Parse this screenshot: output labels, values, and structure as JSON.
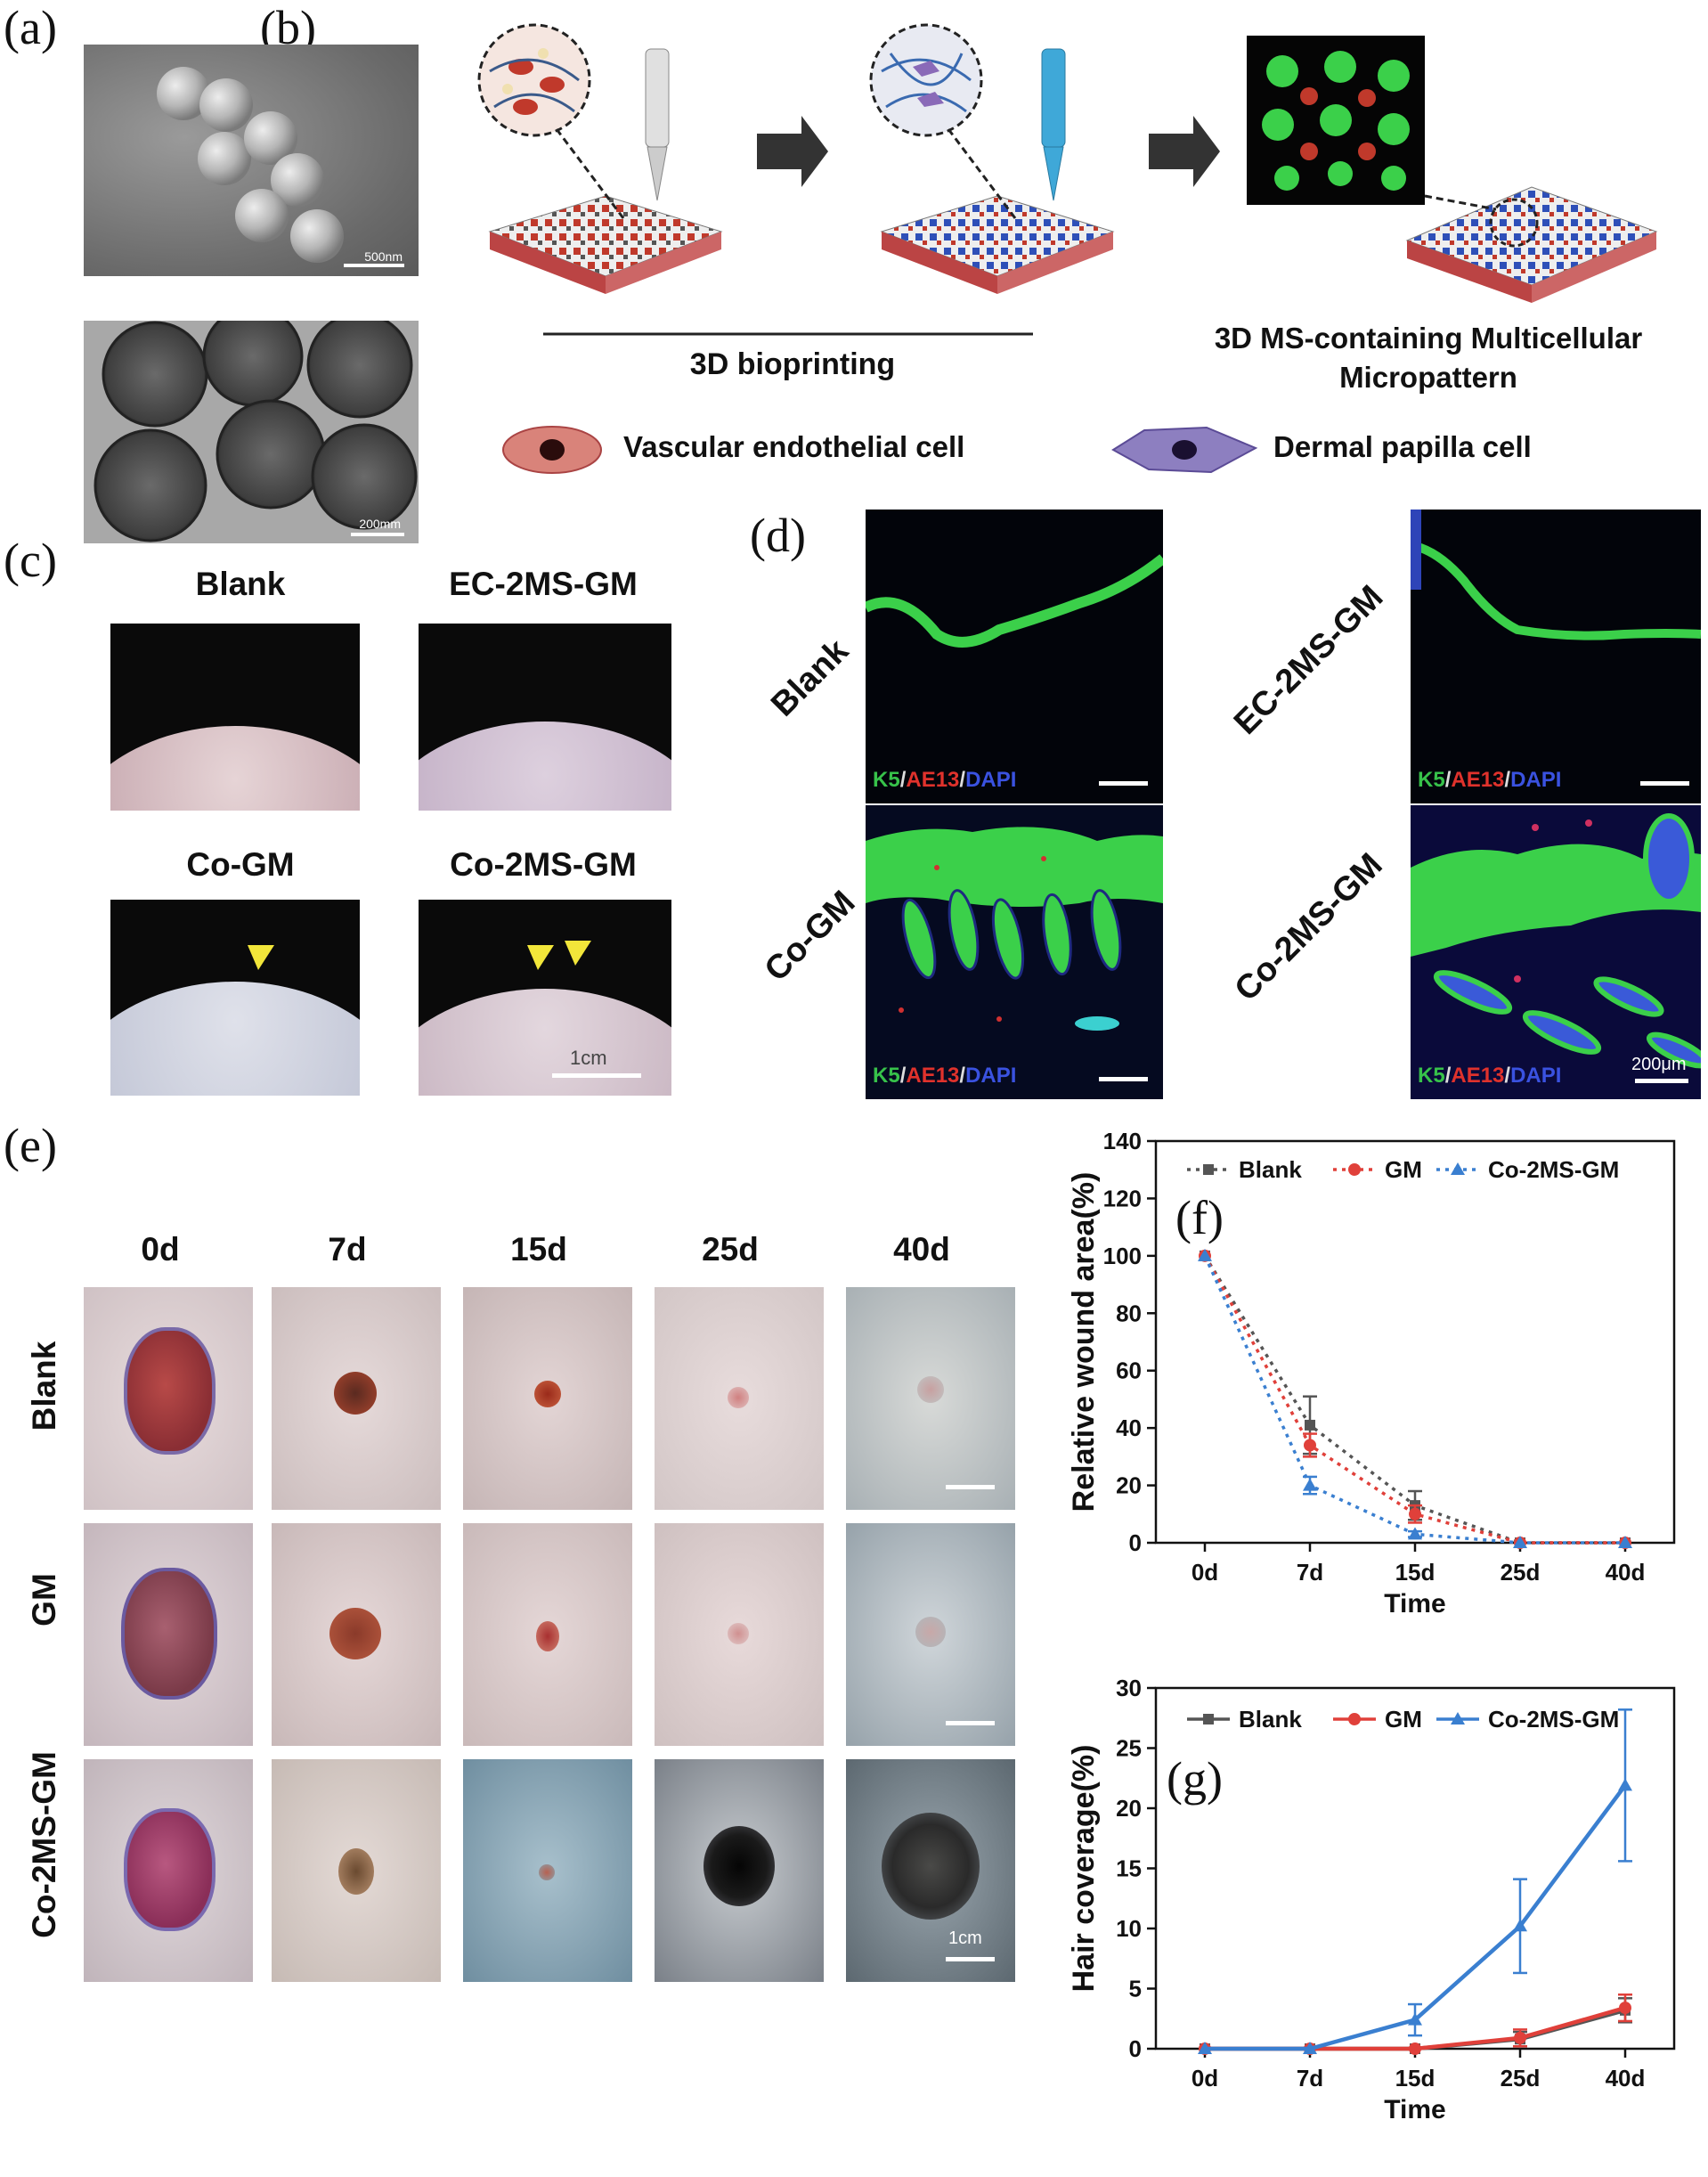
{
  "panel_labels": {
    "a": "(a)",
    "b": "(b)",
    "c": "(c)",
    "d": "(d)",
    "e": "(e)",
    "f": "(f)",
    "g": "(g)"
  },
  "panel_a": {
    "scale_top": "500nm",
    "scale_bottom": "200mm"
  },
  "panel_b": {
    "bioprinting_label": "3D bioprinting",
    "result_label_line1": "3D MS-containing Multicellular",
    "result_label_line2": "Micropattern",
    "legend": {
      "endothelial": "Vascular endothelial cell",
      "papilla": "Dermal papilla cell"
    }
  },
  "panel_c": {
    "groups": [
      "Blank",
      "EC-2MS-GM",
      "Co-GM",
      "Co-2MS-GM"
    ],
    "scale": "1cm"
  },
  "panel_d": {
    "groups": [
      "Blank",
      "EC-2MS-GM",
      "Co-GM",
      "Co-2MS-GM"
    ],
    "stain": {
      "k5": "K5",
      "ae13": "AE13",
      "dapi": "DAPI",
      "slash": "/"
    },
    "scale": "200μm"
  },
  "panel_e": {
    "days": [
      "0d",
      "7d",
      "15d",
      "25d",
      "40d"
    ],
    "rows": [
      "Blank",
      "GM",
      "Co-2MS-GM"
    ],
    "scale": "1cm"
  },
  "colors": {
    "blank": "#555555",
    "gm": "#e0403a",
    "co": "#3a7fd0"
  },
  "chart_data": [
    {
      "type": "line",
      "style": "dotted",
      "categories": [
        "0d",
        "7d",
        "15d",
        "25d",
        "40d"
      ],
      "xlabel": "Time",
      "ylabel": "Relative wound area(%)",
      "ylim": [
        0,
        140
      ],
      "yticks": [
        0,
        20,
        40,
        60,
        80,
        100,
        120,
        140
      ],
      "legend": "top",
      "series": [
        {
          "name": "Blank",
          "values": [
            100,
            41,
            13,
            0,
            0
          ],
          "errors": [
            0,
            10,
            5,
            0,
            0
          ],
          "marker": "square"
        },
        {
          "name": "GM",
          "values": [
            100,
            34,
            10,
            0,
            0
          ],
          "errors": [
            0,
            4,
            3,
            0,
            0
          ],
          "marker": "circle"
        },
        {
          "name": "Co-2MS-GM",
          "values": [
            100,
            20,
            3,
            0,
            0
          ],
          "errors": [
            0,
            3,
            1,
            0,
            0
          ],
          "marker": "triangle"
        }
      ]
    },
    {
      "type": "line",
      "style": "solid",
      "categories": [
        "0d",
        "7d",
        "15d",
        "25d",
        "40d"
      ],
      "xlabel": "Time",
      "ylabel": "Hair coverage(%)",
      "ylim": [
        0,
        30
      ],
      "yticks": [
        0,
        5,
        10,
        15,
        20,
        25,
        30
      ],
      "legend": "top",
      "series": [
        {
          "name": "Blank",
          "values": [
            0,
            0,
            0,
            0.8,
            3.2
          ],
          "errors": [
            0,
            0,
            0,
            0.6,
            1.0
          ],
          "marker": "square"
        },
        {
          "name": "GM",
          "values": [
            0,
            0,
            0,
            0.9,
            3.4
          ],
          "errors": [
            0,
            0,
            0,
            0.7,
            1.1
          ],
          "marker": "circle"
        },
        {
          "name": "Co-2MS-GM",
          "values": [
            0,
            0,
            2.4,
            10.2,
            21.9
          ],
          "errors": [
            0,
            0,
            1.3,
            3.9,
            6.3
          ],
          "marker": "triangle"
        }
      ]
    }
  ]
}
